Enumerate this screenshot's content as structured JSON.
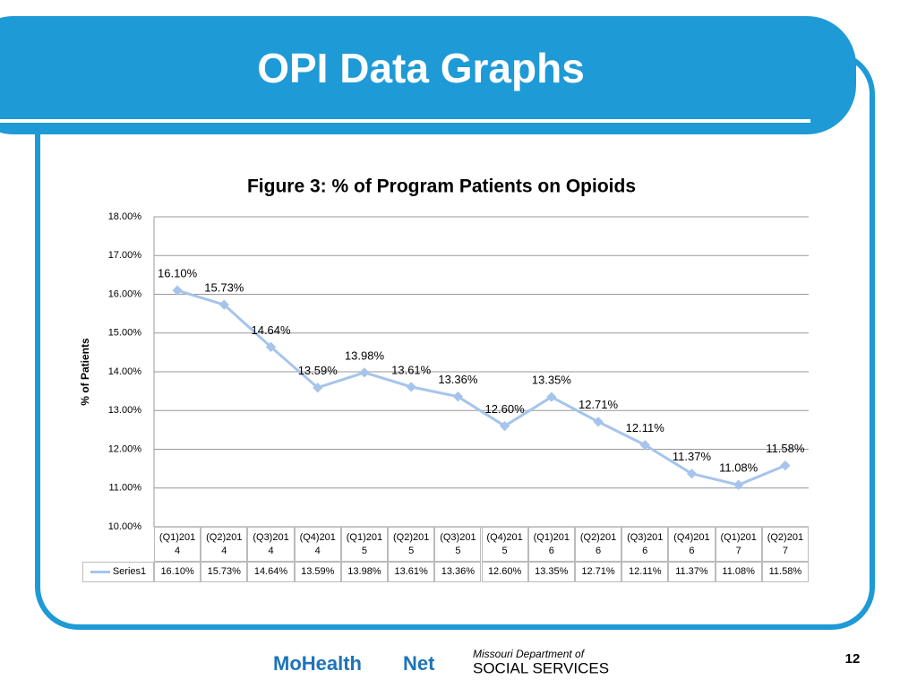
{
  "header": {
    "title": "OPI Data Graphs"
  },
  "chart_data": {
    "type": "line",
    "title": "Figure 3: % of Program Patients on Opioids",
    "y_label": "% of Patients",
    "categories": [
      "(Q1)2014",
      "(Q2)2014",
      "(Q3)2014",
      "(Q4)2014",
      "(Q1)2015",
      "(Q2)2015",
      "(Q3)2015",
      "(Q4)2015",
      "(Q1)2016",
      "(Q2)2016",
      "(Q3)2016",
      "(Q4)2016",
      "(Q1)2017",
      "(Q2)2017"
    ],
    "series": [
      {
        "name": "Series1",
        "color": "#a6c4ec",
        "values": [
          16.1,
          15.73,
          14.64,
          13.59,
          13.98,
          13.61,
          13.36,
          12.6,
          13.35,
          12.71,
          12.11,
          11.37,
          11.08,
          11.58
        ],
        "value_labels": [
          "16.10%",
          "15.73%",
          "14.64%",
          "13.59%",
          "13.98%",
          "13.61%",
          "13.36%",
          "12.60%",
          "13.35%",
          "12.71%",
          "12.11%",
          "11.37%",
          "11.08%",
          "11.58%"
        ]
      }
    ],
    "ylim": [
      10,
      18
    ],
    "yticks": [
      {
        "value": 10,
        "label": "10.00%"
      },
      {
        "value": 11,
        "label": "11.00%"
      },
      {
        "value": 12,
        "label": "12.00%"
      },
      {
        "value": 13,
        "label": "13.00%"
      },
      {
        "value": 14,
        "label": "14.00%"
      },
      {
        "value": 15,
        "label": "15.00%"
      },
      {
        "value": 16,
        "label": "16.00%"
      },
      {
        "value": 17,
        "label": "17.00%"
      },
      {
        "value": 18,
        "label": "18.00%"
      }
    ],
    "grid": true,
    "data_table": true
  },
  "footer": {
    "logo1a": "MoHealth",
    "logo1b": "Net",
    "logo2a": "Missouri Department of",
    "logo2b": "SOCIAL SERVICES",
    "page": "12"
  }
}
